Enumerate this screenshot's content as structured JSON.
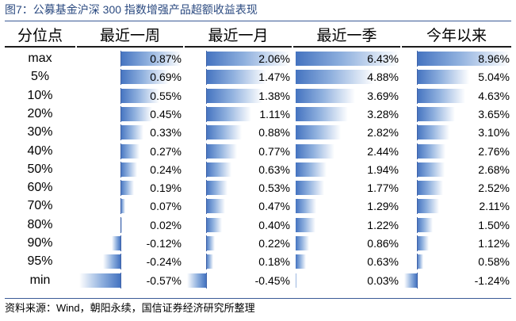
{
  "title": "图7：公募基金沪深 300 指数增强产品超额收益表现",
  "source": "资料来源：Wind，朝阳永续，国信证券经济研究所整理",
  "table": {
    "row_header": "分位点",
    "columns": [
      "最近一周",
      "最近一月",
      "最近一季",
      "今年以来"
    ],
    "rows": [
      {
        "label": "max",
        "values": [
          "0.87%",
          "2.06%",
          "6.43%",
          "8.96%"
        ],
        "nums": [
          0.87,
          2.06,
          6.43,
          8.96
        ]
      },
      {
        "label": "5%",
        "values": [
          "0.69%",
          "1.47%",
          "4.88%",
          "5.04%"
        ],
        "nums": [
          0.69,
          1.47,
          4.88,
          5.04
        ]
      },
      {
        "label": "10%",
        "values": [
          "0.55%",
          "1.38%",
          "3.69%",
          "4.63%"
        ],
        "nums": [
          0.55,
          1.38,
          3.69,
          4.63
        ]
      },
      {
        "label": "20%",
        "values": [
          "0.45%",
          "1.11%",
          "3.28%",
          "3.65%"
        ],
        "nums": [
          0.45,
          1.11,
          3.28,
          3.65
        ]
      },
      {
        "label": "30%",
        "values": [
          "0.33%",
          "0.88%",
          "2.82%",
          "3.10%"
        ],
        "nums": [
          0.33,
          0.88,
          2.82,
          3.1
        ]
      },
      {
        "label": "40%",
        "values": [
          "0.27%",
          "0.77%",
          "2.44%",
          "2.76%"
        ],
        "nums": [
          0.27,
          0.77,
          2.44,
          2.76
        ]
      },
      {
        "label": "50%",
        "values": [
          "0.24%",
          "0.63%",
          "1.94%",
          "2.68%"
        ],
        "nums": [
          0.24,
          0.63,
          1.94,
          2.68
        ]
      },
      {
        "label": "60%",
        "values": [
          "0.19%",
          "0.53%",
          "1.77%",
          "2.52%"
        ],
        "nums": [
          0.19,
          0.53,
          1.77,
          2.52
        ]
      },
      {
        "label": "70%",
        "values": [
          "0.07%",
          "0.47%",
          "1.29%",
          "2.11%"
        ],
        "nums": [
          0.07,
          0.47,
          1.29,
          2.11
        ]
      },
      {
        "label": "80%",
        "values": [
          "0.02%",
          "0.40%",
          "1.22%",
          "1.50%"
        ],
        "nums": [
          0.02,
          0.4,
          1.22,
          1.5
        ]
      },
      {
        "label": "90%",
        "values": [
          "-0.12%",
          "0.22%",
          "0.86%",
          "1.12%"
        ],
        "nums": [
          -0.12,
          0.22,
          0.86,
          1.12
        ]
      },
      {
        "label": "95%",
        "values": [
          "-0.24%",
          "0.18%",
          "0.63%",
          "0.58%"
        ],
        "nums": [
          -0.24,
          0.18,
          0.63,
          0.58
        ]
      },
      {
        "label": "min",
        "values": [
          "-0.57%",
          "-0.45%",
          "0.03%",
          "-1.24%"
        ],
        "nums": [
          -0.57,
          -0.45,
          0.03,
          -1.24
        ]
      }
    ]
  },
  "colors": {
    "title": "#2b4a80",
    "bar": "#4473c0",
    "rule": "#3a5a96"
  }
}
